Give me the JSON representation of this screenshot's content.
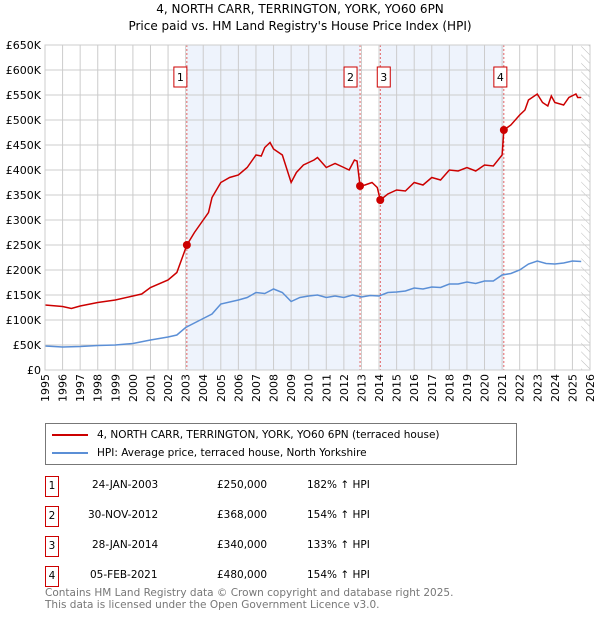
{
  "chart_data": {
    "type": "line",
    "title": "4, NORTH CARR, TERRINGTON, YORK, YO60 6PN",
    "subtitle": "Price paid vs. HM Land Registry's House Price Index (HPI)",
    "xlim": [
      1995,
      2026
    ],
    "ylim": [
      0,
      650000
    ],
    "x_ticks": [
      "1995",
      "1996",
      "1997",
      "1998",
      "1999",
      "2000",
      "2001",
      "2002",
      "2003",
      "2004",
      "2005",
      "2006",
      "2007",
      "2008",
      "2009",
      "2010",
      "2011",
      "2012",
      "2013",
      "2014",
      "2015",
      "2016",
      "2017",
      "2018",
      "2019",
      "2020",
      "2021",
      "2022",
      "2023",
      "2024",
      "2025",
      "2026"
    ],
    "y_ticks": [
      {
        "v": 0,
        "l": "£0"
      },
      {
        "v": 50000,
        "l": "£50K"
      },
      {
        "v": 100000,
        "l": "£100K"
      },
      {
        "v": 150000,
        "l": "£150K"
      },
      {
        "v": 200000,
        "l": "£200K"
      },
      {
        "v": 250000,
        "l": "£250K"
      },
      {
        "v": 300000,
        "l": "£300K"
      },
      {
        "v": 350000,
        "l": "£350K"
      },
      {
        "v": 400000,
        "l": "£400K"
      },
      {
        "v": 450000,
        "l": "£450K"
      },
      {
        "v": 500000,
        "l": "£500K"
      },
      {
        "v": 550000,
        "l": "£550K"
      },
      {
        "v": 600000,
        "l": "£600K"
      },
      {
        "v": 650000,
        "l": "£650K"
      }
    ],
    "grid": true,
    "shaded_ranges": [
      [
        2003.07,
        2012.92
      ],
      [
        2014.07,
        2021.1
      ]
    ],
    "hatched_from": 2025.5,
    "series": [
      {
        "name": "4, NORTH CARR, TERRINGTON, YORK, YO60 6PN (terraced house)",
        "color": "#cc0000",
        "points": [
          [
            1995,
            130
          ],
          [
            1996,
            127
          ],
          [
            1996.5,
            123
          ],
          [
            1997,
            128
          ],
          [
            1998,
            135
          ],
          [
            1999,
            140
          ],
          [
            2000,
            148
          ],
          [
            2000.5,
            152
          ],
          [
            2001,
            165
          ],
          [
            2002,
            180
          ],
          [
            2002.5,
            195
          ],
          [
            2003.07,
            250
          ],
          [
            2003.5,
            275
          ],
          [
            2004,
            300
          ],
          [
            2004.3,
            315
          ],
          [
            2004.5,
            345
          ],
          [
            2005,
            375
          ],
          [
            2005.5,
            385
          ],
          [
            2006,
            390
          ],
          [
            2006.5,
            405
          ],
          [
            2007,
            430
          ],
          [
            2007.3,
            428
          ],
          [
            2007.5,
            445
          ],
          [
            2007.8,
            455
          ],
          [
            2008,
            442
          ],
          [
            2008.5,
            430
          ],
          [
            2009,
            375
          ],
          [
            2009.3,
            395
          ],
          [
            2009.7,
            410
          ],
          [
            2010.3,
            420
          ],
          [
            2010.5,
            425
          ],
          [
            2011,
            405
          ],
          [
            2011.5,
            413
          ],
          [
            2012,
            405
          ],
          [
            2012.3,
            400
          ],
          [
            2012.6,
            420
          ],
          [
            2012.75,
            418
          ],
          [
            2012.92,
            368
          ],
          [
            2013.2,
            370
          ],
          [
            2013.6,
            375
          ],
          [
            2013.9,
            365
          ],
          [
            2014.07,
            340
          ],
          [
            2014.5,
            352
          ],
          [
            2015,
            360
          ],
          [
            2015.5,
            358
          ],
          [
            2016,
            375
          ],
          [
            2016.5,
            370
          ],
          [
            2017,
            385
          ],
          [
            2017.5,
            380
          ],
          [
            2018,
            400
          ],
          [
            2018.5,
            398
          ],
          [
            2019,
            405
          ],
          [
            2019.5,
            398
          ],
          [
            2020,
            410
          ],
          [
            2020.5,
            408
          ],
          [
            2021,
            430
          ],
          [
            2021.1,
            480
          ],
          [
            2021.5,
            490
          ],
          [
            2022,
            510
          ],
          [
            2022.3,
            520
          ],
          [
            2022.5,
            540
          ],
          [
            2023,
            552
          ],
          [
            2023.3,
            535
          ],
          [
            2023.6,
            528
          ],
          [
            2023.8,
            548
          ],
          [
            2024,
            535
          ],
          [
            2024.5,
            530
          ],
          [
            2024.8,
            545
          ],
          [
            2025.2,
            552
          ],
          [
            2025.3,
            545
          ],
          [
            2025.5,
            545
          ]
        ]
      },
      {
        "name": "HPI: Average price, terraced house, North Yorkshire",
        "color": "#5b8fd6",
        "points": [
          [
            1995,
            48
          ],
          [
            1996,
            46
          ],
          [
            1997,
            47
          ],
          [
            1998,
            49
          ],
          [
            1999,
            50
          ],
          [
            2000,
            53
          ],
          [
            2001,
            60
          ],
          [
            2002,
            66
          ],
          [
            2002.5,
            70
          ],
          [
            2003,
            85
          ],
          [
            2004,
            103
          ],
          [
            2004.5,
            112
          ],
          [
            2005,
            132
          ],
          [
            2006,
            140
          ],
          [
            2006.5,
            145
          ],
          [
            2007,
            155
          ],
          [
            2007.5,
            153
          ],
          [
            2008,
            162
          ],
          [
            2008.5,
            155
          ],
          [
            2009,
            137
          ],
          [
            2009.5,
            145
          ],
          [
            2010,
            148
          ],
          [
            2010.5,
            150
          ],
          [
            2011,
            145
          ],
          [
            2011.5,
            148
          ],
          [
            2012,
            145
          ],
          [
            2012.5,
            150
          ],
          [
            2013,
            146
          ],
          [
            2013.5,
            149
          ],
          [
            2014,
            148
          ],
          [
            2014.5,
            155
          ],
          [
            2015,
            156
          ],
          [
            2015.5,
            158
          ],
          [
            2016,
            164
          ],
          [
            2016.5,
            162
          ],
          [
            2017,
            166
          ],
          [
            2017.5,
            165
          ],
          [
            2018,
            172
          ],
          [
            2018.5,
            172
          ],
          [
            2019,
            176
          ],
          [
            2019.5,
            173
          ],
          [
            2020,
            178
          ],
          [
            2020.5,
            178
          ],
          [
            2021,
            190
          ],
          [
            2021.5,
            193
          ],
          [
            2022,
            200
          ],
          [
            2022.5,
            212
          ],
          [
            2023,
            218
          ],
          [
            2023.5,
            213
          ],
          [
            2024,
            212
          ],
          [
            2024.5,
            214
          ],
          [
            2025,
            218
          ],
          [
            2025.5,
            217
          ]
        ]
      }
    ],
    "sales": [
      {
        "n": "1",
        "x": 2003.07,
        "price": 250000,
        "date": "24-JAN-2003",
        "price_label": "£250,000",
        "hpi": "182% ↑ HPI"
      },
      {
        "n": "2",
        "x": 2012.92,
        "price": 368000,
        "date": "30-NOV-2012",
        "price_label": "£368,000",
        "hpi": "154% ↑ HPI"
      },
      {
        "n": "3",
        "x": 2014.07,
        "price": 340000,
        "date": "28-JAN-2014",
        "price_label": "£340,000",
        "hpi": "133% ↑ HPI"
      },
      {
        "n": "4",
        "x": 2021.1,
        "price": 480000,
        "date": "05-FEB-2021",
        "price_label": "£480,000",
        "hpi": "154% ↑ HPI"
      }
    ],
    "value_units": "thousands GBP for series points"
  },
  "footer": {
    "line1": "Contains HM Land Registry data © Crown copyright and database right 2025.",
    "line2": "This data is licensed under the Open Government Licence v3.0."
  }
}
